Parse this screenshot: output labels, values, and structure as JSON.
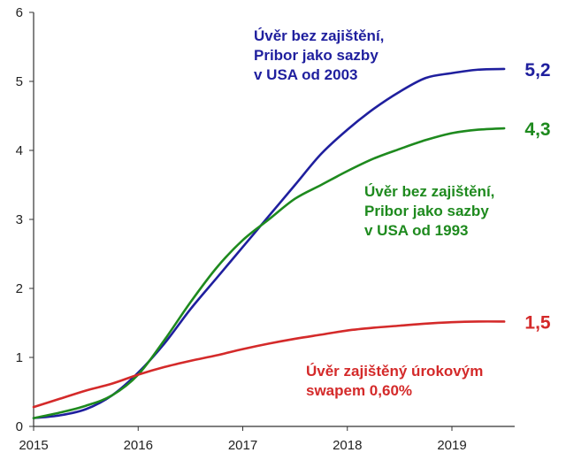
{
  "chart_data": {
    "type": "line",
    "title": "",
    "xlabel": "",
    "ylabel": "",
    "xlim": [
      2015,
      2019.6
    ],
    "ylim": [
      0,
      6
    ],
    "x_ticks": [
      2015,
      2016,
      2017,
      2018,
      2019
    ],
    "y_ticks": [
      0,
      1,
      2,
      3,
      4,
      5,
      6
    ],
    "grid": false,
    "legend": "none",
    "series": [
      {
        "name": "Úvěr bez zajištění, Pribor jako sazby v USA od 2003",
        "color": "#1f1f9e",
        "x": [
          2015.0,
          2015.25,
          2015.5,
          2015.75,
          2016.0,
          2016.25,
          2016.5,
          2016.75,
          2017.0,
          2017.25,
          2017.5,
          2017.75,
          2018.0,
          2018.25,
          2018.5,
          2018.75,
          2019.0,
          2019.25,
          2019.5
        ],
        "values": [
          0.12,
          0.16,
          0.25,
          0.45,
          0.78,
          1.2,
          1.7,
          2.15,
          2.6,
          3.05,
          3.5,
          3.95,
          4.3,
          4.6,
          4.85,
          5.05,
          5.12,
          5.17,
          5.18
        ],
        "end_label": "5,2",
        "annotation": [
          "Úvěr bez zajištění,",
          "Pribor jako sazby",
          "v USA od 2003"
        ]
      },
      {
        "name": "Úvěr bez zajištění, Pribor jako sazby v USA od 1993",
        "color": "#1e8a1e",
        "x": [
          2015.0,
          2015.25,
          2015.5,
          2015.75,
          2016.0,
          2016.25,
          2016.5,
          2016.75,
          2017.0,
          2017.25,
          2017.5,
          2017.75,
          2018.0,
          2018.25,
          2018.5,
          2018.75,
          2019.0,
          2019.25,
          2019.5
        ],
        "values": [
          0.12,
          0.2,
          0.3,
          0.45,
          0.75,
          1.25,
          1.8,
          2.3,
          2.7,
          3.0,
          3.3,
          3.5,
          3.7,
          3.88,
          4.02,
          4.15,
          4.25,
          4.3,
          4.32
        ],
        "end_label": "4,3",
        "annotation": [
          "Úvěr bez zajištění,",
          "Pribor  jako sazby",
          "v USA od 1993"
        ]
      },
      {
        "name": "Úvěr zajištěný úrokovým swapem 0,60%",
        "color": "#d42a2a",
        "x": [
          2015.0,
          2015.25,
          2015.5,
          2015.75,
          2016.0,
          2016.25,
          2016.5,
          2016.75,
          2017.0,
          2017.25,
          2017.5,
          2017.75,
          2018.0,
          2018.25,
          2018.5,
          2018.75,
          2019.0,
          2019.25,
          2019.5
        ],
        "values": [
          0.28,
          0.4,
          0.52,
          0.62,
          0.75,
          0.86,
          0.95,
          1.03,
          1.12,
          1.2,
          1.27,
          1.33,
          1.39,
          1.43,
          1.46,
          1.49,
          1.51,
          1.52,
          1.52
        ],
        "end_label": "1,5",
        "annotation": [
          "Úvěr zajištěný úrokovým",
          "swapem 0,60%"
        ]
      }
    ]
  }
}
